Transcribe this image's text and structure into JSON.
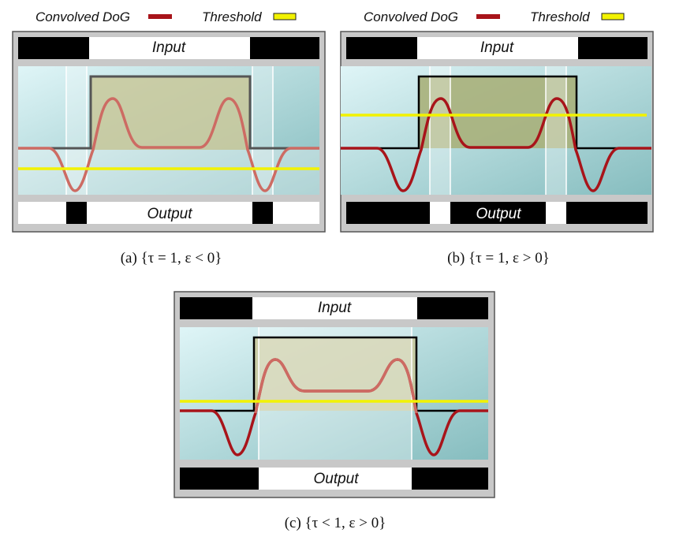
{
  "legend": {
    "dog_label": "Convolved DoG",
    "threshold_label": "Threshold",
    "dog_color": "#a8141a",
    "threshold_color": "#f2f200"
  },
  "colors": {
    "frame_bg": "#c8c8c8",
    "frame_border": "#555555",
    "plot_gradient_top": "#d9f3f6",
    "plot_gradient_bottom": "#8ec4c6",
    "step_fill": "#c9c89a",
    "step_fill_dark": "#a9b07a",
    "black": "#000000",
    "white": "#ffffff"
  },
  "panels": [
    {
      "id": "a",
      "input_label": "Input",
      "output_label": "Output",
      "caption": "(a) {τ = 1, ε < 0}",
      "threshold_position": "below baseline",
      "output_pattern": [
        "white",
        "black",
        "white",
        "black",
        "white"
      ]
    },
    {
      "id": "b",
      "input_label": "Input",
      "output_label": "Output",
      "caption": "(b) {τ = 1, ε > 0}",
      "threshold_position": "above baseline",
      "output_pattern": [
        "black",
        "white",
        "black",
        "white",
        "black"
      ]
    },
    {
      "id": "c",
      "input_label": "Input",
      "output_label": "Output",
      "caption": "(c) {τ < 1, ε > 0}",
      "threshold_position": "above baseline",
      "output_pattern": [
        "black",
        "white",
        "black"
      ]
    }
  ]
}
